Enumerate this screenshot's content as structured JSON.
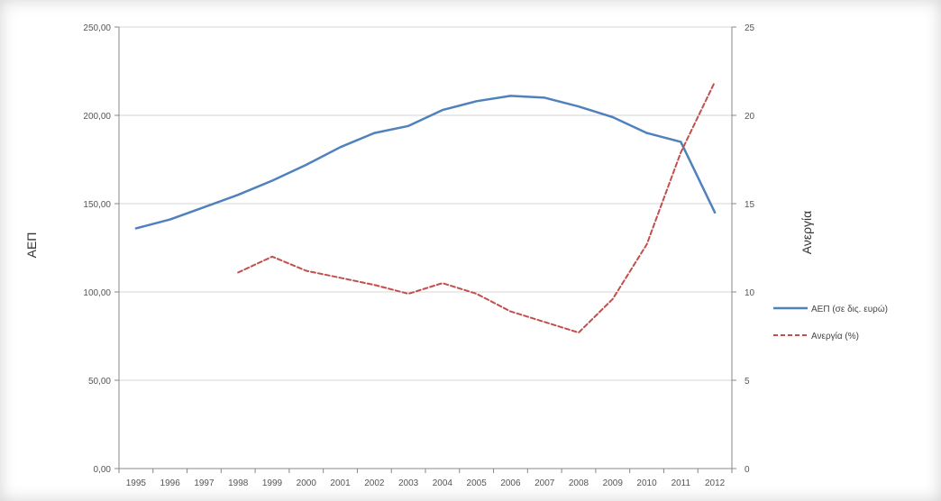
{
  "chart_data": {
    "type": "line",
    "x": [
      "1995",
      "1996",
      "1997",
      "1998",
      "1999",
      "2000",
      "2001",
      "2002",
      "2003",
      "2004",
      "2005",
      "2006",
      "2007",
      "2008",
      "2009",
      "2010",
      "2011",
      "2012"
    ],
    "series": [
      {
        "name": "ΑΕΠ (σε δις. ευρώ)",
        "axis": "left",
        "color": "#4f81bd",
        "dashed": false,
        "values": [
          136,
          141,
          148,
          155,
          163,
          172,
          182,
          190,
          194,
          203,
          208,
          211,
          210,
          205,
          199,
          190,
          185,
          145
        ]
      },
      {
        "name": "Ανεργία (%)",
        "axis": "right",
        "color": "#c0504d",
        "dashed": true,
        "values": [
          null,
          null,
          null,
          11.1,
          12.0,
          11.2,
          10.8,
          10.4,
          9.9,
          10.5,
          9.9,
          8.9,
          8.3,
          7.7,
          9.6,
          12.7,
          17.9,
          21.9
        ]
      }
    ],
    "ylabel": "ΑΕΠ",
    "y2label": "Ανεργία",
    "ylim": [
      0,
      250
    ],
    "y2lim": [
      0,
      25
    ],
    "yticks": [
      "0,00",
      "50,00",
      "100,00",
      "150,00",
      "200,00",
      "250,00"
    ],
    "y2ticks": [
      "0",
      "5",
      "10",
      "15",
      "20",
      "25"
    ],
    "grid": true,
    "legend": "right"
  }
}
